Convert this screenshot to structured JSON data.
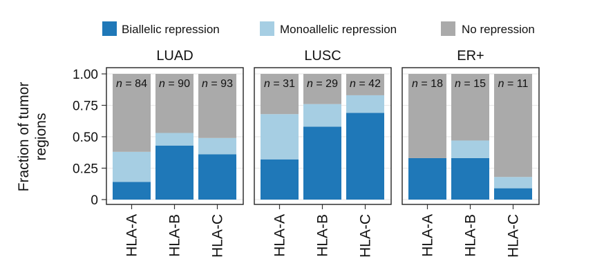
{
  "chart_data": {
    "type": "bar",
    "stacked": true,
    "ylabel": "Fraction of tumor\nregions",
    "ylim": [
      0,
      1
    ],
    "yticks": [
      0,
      0.25,
      0.5,
      0.75,
      1.0
    ],
    "ytick_labels": [
      "0",
      "0.25",
      "0.50",
      "0.75",
      "1.00"
    ],
    "grid": true,
    "legend": {
      "position": "top",
      "entries": [
        {
          "label": "Biallelic repression",
          "color": "#1f78b8"
        },
        {
          "label": "Monoallelic repression",
          "color": "#a6cee3"
        },
        {
          "label": "No repression",
          "color": "#aaaaaa"
        }
      ]
    },
    "categories": [
      "HLA-A",
      "HLA-B",
      "HLA-C"
    ],
    "panels": [
      {
        "title": "LUAD",
        "n_labels": [
          "n = 84",
          "n = 90",
          "n = 93"
        ],
        "series": [
          {
            "name": "Biallelic repression",
            "values": [
              0.14,
              0.43,
              0.36
            ]
          },
          {
            "name": "Monoallelic repression",
            "values": [
              0.24,
              0.1,
              0.13
            ]
          },
          {
            "name": "No repression",
            "values": [
              0.62,
              0.47,
              0.51
            ]
          }
        ]
      },
      {
        "title": "LUSC",
        "n_labels": [
          "n = 31",
          "n = 29",
          "n = 42"
        ],
        "series": [
          {
            "name": "Biallelic repression",
            "values": [
              0.32,
              0.58,
              0.69
            ]
          },
          {
            "name": "Monoallelic repression",
            "values": [
              0.36,
              0.18,
              0.14
            ]
          },
          {
            "name": "No repression",
            "values": [
              0.32,
              0.24,
              0.17
            ]
          }
        ]
      },
      {
        "title": "ER+",
        "n_labels": [
          "n = 18",
          "n = 15",
          "n = 11"
        ],
        "series": [
          {
            "name": "Biallelic repression",
            "values": [
              0.33,
              0.33,
              0.09
            ]
          },
          {
            "name": "Monoallelic repression",
            "values": [
              0.0,
              0.14,
              0.09
            ]
          },
          {
            "name": "No repression",
            "values": [
              0.67,
              0.53,
              0.82
            ]
          }
        ]
      }
    ]
  }
}
